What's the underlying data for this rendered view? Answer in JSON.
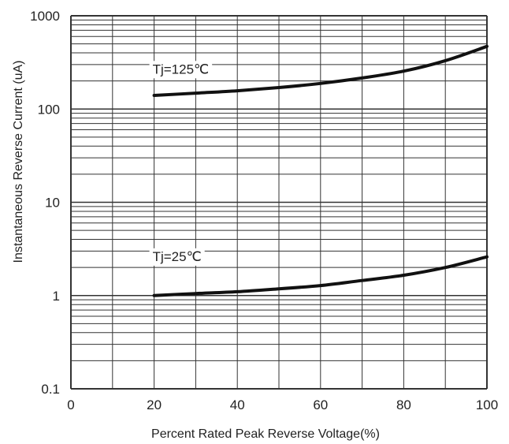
{
  "chart_data": {
    "type": "line",
    "xlabel": "Percent Rated Peak Reverse Voltage(%)",
    "ylabel": "Instantaneous Reverse Current (uA)",
    "xlim": [
      0,
      100
    ],
    "ylim": [
      0.1,
      1000
    ],
    "yscale": "log",
    "grid": true,
    "x_ticks": [
      "0",
      "20",
      "40",
      "60",
      "80",
      "100"
    ],
    "y_ticks": [
      "0.1",
      "1",
      "10",
      "100",
      "1000"
    ],
    "series": [
      {
        "name": "Tj=125℃",
        "x": [
          20,
          30,
          40,
          50,
          60,
          70,
          80,
          90,
          100
        ],
        "y": [
          140,
          148,
          157,
          170,
          188,
          215,
          255,
          330,
          470
        ]
      },
      {
        "name": "Tj=25℃",
        "x": [
          20,
          30,
          40,
          50,
          60,
          70,
          80,
          90,
          100
        ],
        "y": [
          1.0,
          1.05,
          1.1,
          1.18,
          1.28,
          1.45,
          1.65,
          2.0,
          2.6
        ]
      }
    ],
    "colors": {
      "curve": "#111111",
      "grid": "#333333",
      "background": "#ffffff"
    }
  }
}
